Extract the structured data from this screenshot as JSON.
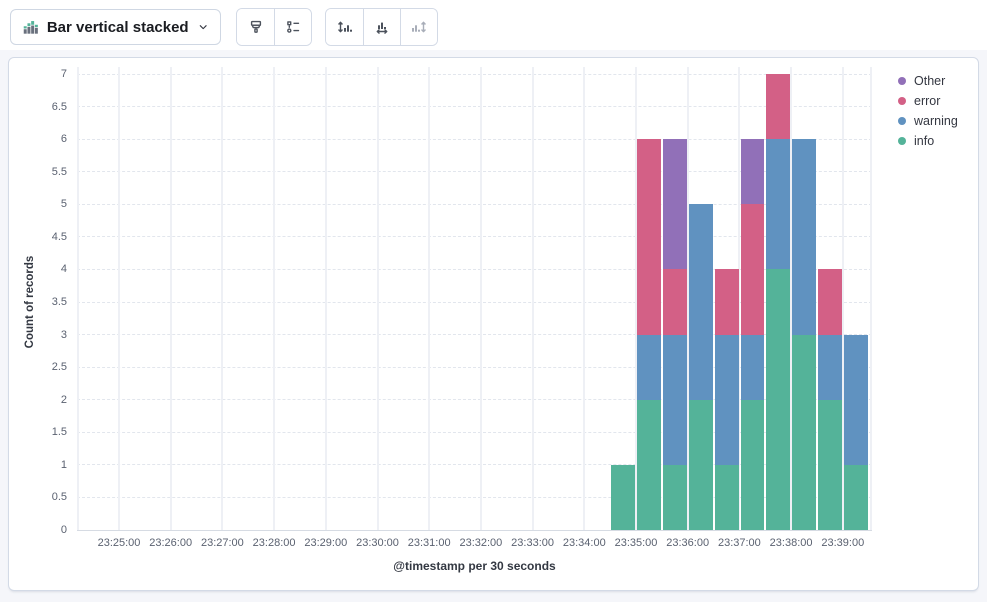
{
  "toolbar": {
    "chart_type_selector": {
      "label": "Bar vertical stacked",
      "icon": "bar-vertical-stacked-icon"
    },
    "style_group": {
      "visual_options_icon": "brush-icon",
      "legend_settings_icon": "legend-icon"
    },
    "axis_group": {
      "left_axis_icon": "axis-left-icon",
      "bottom_axis_icon": "axis-bottom-icon",
      "right_axis_icon": "axis-right-icon",
      "right_axis_disabled": true
    }
  },
  "chart_data": {
    "type": "bar",
    "stacked": true,
    "orientation": "vertical",
    "xlabel": "@timestamp per 30 seconds",
    "ylabel": "Count of records",
    "ylim": [
      0,
      7
    ],
    "ytick_step": 0.5,
    "grid": true,
    "x_axis_ticks": [
      "23:25:00",
      "23:26:00",
      "23:27:00",
      "23:28:00",
      "23:29:00",
      "23:30:00",
      "23:31:00",
      "23:32:00",
      "23:33:00",
      "23:34:00",
      "23:35:00",
      "23:36:00",
      "23:37:00",
      "23:38:00",
      "23:39:00"
    ],
    "bucket_seconds": 30,
    "categories": [
      "23:34:30",
      "23:35:00",
      "23:35:30",
      "23:36:00",
      "23:36:30",
      "23:37:00",
      "23:37:30",
      "23:38:00",
      "23:38:30",
      "23:39:00"
    ],
    "series": [
      {
        "name": "info",
        "color": "#54B399",
        "values": [
          1,
          2,
          1,
          2,
          1,
          2,
          4,
          3,
          2,
          1
        ]
      },
      {
        "name": "warning",
        "color": "#6092C0",
        "values": [
          0,
          1,
          2,
          3,
          2,
          1,
          2,
          3,
          1,
          2
        ]
      },
      {
        "name": "error",
        "color": "#D36086",
        "values": [
          0,
          3,
          1,
          0,
          1,
          2,
          1,
          0,
          1,
          0
        ]
      },
      {
        "name": "Other",
        "color": "#9170B8",
        "values": [
          0,
          0,
          2,
          0,
          0,
          1,
          0,
          0,
          0,
          0
        ]
      }
    ],
    "legend": {
      "position": "right",
      "items": [
        "Other",
        "error",
        "warning",
        "info"
      ]
    }
  }
}
